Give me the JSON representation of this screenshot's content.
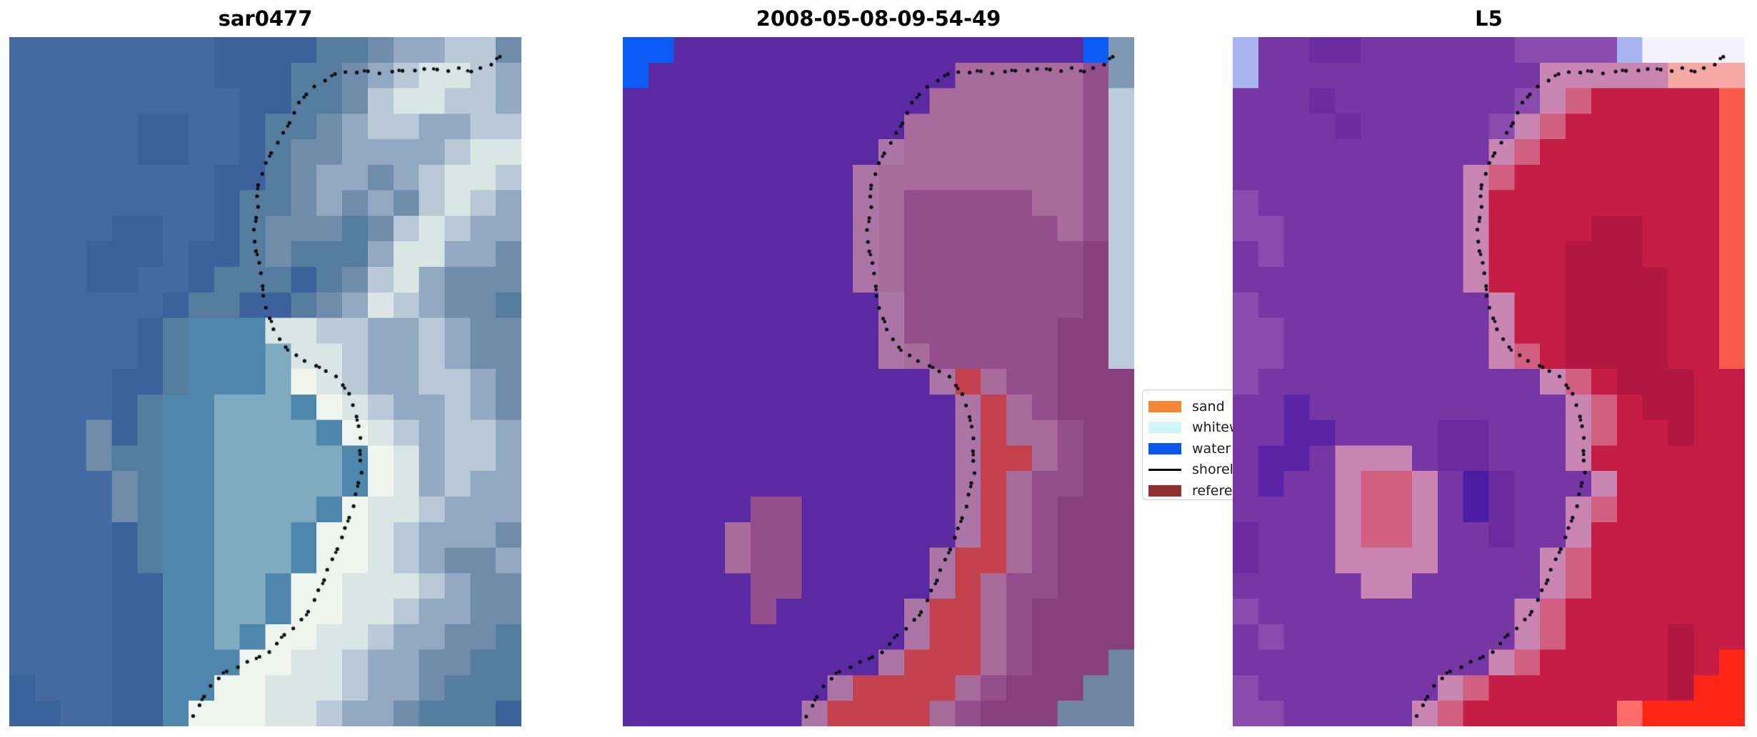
{
  "figure": {
    "background": "#ffffff"
  },
  "panels": [
    {
      "title": "sar0477",
      "grid": {
        "cols": 20,
        "rows": 27,
        "palette": {
          "a": "#456AA2",
          "b": "#3C619B",
          "c": "#567C9E",
          "d": "#6F8CAB",
          "e": "#93A9C2",
          "f": "#B9C9D8",
          "g": "#D9E6E4",
          "h": "#EFF4EF",
          "i": "#4F86AC",
          "j": "#7FABC0",
          "k": "#38639C"
        },
        "rows_data": [
          "aaaaaaaabbbbccdeeffd",
          "aaaaaaaabbbccdefggfe",
          "aaaaaaaaabbccdfggffe",
          "aaaaabbaabccdeffeeff",
          "aaaaabbaabcddeeeefgg",
          "aaaaaaaabbcdeedefggf",
          "aaaaaaaabccdededfgfe",
          "aaaabbaabcdddcdfgfee",
          "aaabbbabbcdccceggeed",
          "aaabbaabcccbcdfgeddd",
          "aaaaaabccbbcdegfeddc",
          "aaaaabciiiggffeefedd",
          "aaaaabciiijggfeefedd",
          "aaaabbciiijhgfeeffed",
          "aaaabciijjjihgfeefed",
          "aaadbciijjjjihgfeffe",
          "aaadcciijjjjjihgeffe",
          "aaaadciijjjjjihgefee",
          "aaaadciijjjjihggfeee",
          "aaaabciijjjihhgfeeed",
          "aaaabciijjjihhgfedde",
          "aaaabbiijjihhgggfedd",
          "aaaabbiijjihhggfeedd",
          "aaaabbiijihhggfeeddc",
          "aaaabbiiihhggfeeddcc",
          "kaaabbiihhgggfeedccc",
          "kkaabbihhhggfeedcccb"
        ]
      }
    },
    {
      "title": "2008-05-08-09-54-49",
      "grid": {
        "cols": 20,
        "rows": 27,
        "palette": {
          "u": "#0B5CF5",
          "w": "#5B2AA3",
          "s": "#7E97B2",
          "t": "#BCCBDA",
          "l": "#A76C9C",
          "m": "#934E8B",
          "d": "#873F80",
          "q": "#AB76A5",
          "r": "#C4424E",
          "y": "#6E86A3"
        },
        "rows_data": [
          "uuwwwwwwwwwwwwwwwwus",
          "uwwwwwwwwwwwwlllllms",
          "wwwwwwwwwwwwllllllmt",
          "wwwwwwwwwwwlllllllmt",
          "wwwwwwwwwwqlllllllmt",
          "wwwwwwwwwqllllllllmt",
          "wwwwwwwwwqlmmmmmllmt",
          "wwwwwwwwwqlmmmmmmlmt",
          "wwwwwwwwwqlmmmmmmmdt",
          "wwwwwwwwwqlmmmmmmmdt",
          "wwwwwwwwwwqmmmmmmmdt",
          "wwwwwwwwwwqmmmmmmddt",
          "wwwwwwwwwwqlmmmmmddt",
          "wwwwwwwwwwwwqrlmmddd",
          "wwwwwwwwwwwwwqrlmddd",
          "wwwwwwwwwwwwwqrllmdd",
          "wwwwwwwwwwwwwqrrlmdd",
          "wwwwwwwwwwwwwqrlmmdd",
          "wwwwwmmwwwwwwqrlmddd",
          "wwwwlmmwwwwwwqrlmddd",
          "wwwwlmmwwwwwqrrlmddd",
          "wwwwwmmwwwwwqrlmmddd",
          "wwwwwmwwwwwqrrlmdddd",
          "wwwwwwwwwwwqrrlmdddd",
          "wwwwwwwwwwqrrrlmdddy",
          "wwwwwwwwqrrrrlmdddyy",
          "wwwwwwwqrrrrlmdddyyy"
        ]
      }
    },
    {
      "title": "L5",
      "grid": {
        "cols": 20,
        "rows": 27,
        "palette": {
          "P": "#7637A4",
          "O": "#8A4BAE",
          "Q": "#6A2C9F",
          "V": "#5B24A6",
          "X": "#4C1CA4",
          "B": "#A9B5F1",
          "N": "#F4F2FA",
          "S": "#F4A9A5",
          "E": "#F95B4B",
          "p": "#C986B2",
          "K": "#D05F80",
          "C": "#C51D46",
          "D": "#B21841",
          "F": "#FF2617",
          "G": "#FF6E69"
        },
        "rows_data": [
          "BPPQQPPPPPPOOOOBNNNN",
          "BPPPPPPPPPPPpppppSSS",
          "PPPQPPPPPPPOpKCCCCCE",
          "PPPPQPPPPPOpKCCCCCCE",
          "PPPPPPPPPPpKCCCCCCCE",
          "PPPPPPPPPpKCCCCCCCCE",
          "OPPPPPPPPpCCCCCCCCCE",
          "OOPPPPPPPpCCCCDDCCCE",
          "POPPPPPPPpCCCDDDCCCE",
          "PPPPPPPPPpCCCDDDDCCE",
          "OPPPPPPPPPpCCDDDDCCE",
          "OOPPPPPPPPpCCDDDDCCE",
          "OOPPPPPPPPpKCDDDDCCE",
          "OPPPPPPPPPPPpKCDDDCC",
          "PPVPPPPPPPPPPpKCDDCC",
          "PPVVPPPPQQPPPpKCCDCC",
          "PVVPpppPQQPPPpCCCCCC",
          "PVPPpKKpPXQPPPpCCCCC",
          "PPPPpKKpPXQPPpKCCCCC",
          "QPPPpKKpPPQPPpCCCCCC",
          "QPPPppppPPPPpKCCCCCC",
          "PPPPPppPPPPPpKCCCCCC",
          "OPPPPPPPPPPpKCCCCCCC",
          "POPPPPPPPPPpKCCCCDCC",
          "PPPPPPPPPPpKCCCCCDCF",
          "OPPPPPPPpKCCCCCCCDFF",
          "OOPPPPPpKCCCCCCGFFFF"
        ]
      }
    }
  ],
  "shoreline": {
    "color": "#0E0E16",
    "dot_radius": 2.6,
    "dot_spacing": 16,
    "points": [
      [
        0.96,
        0.03
      ],
      [
        0.935,
        0.042
      ],
      [
        0.91,
        0.05
      ],
      [
        0.88,
        0.046
      ],
      [
        0.85,
        0.05
      ],
      [
        0.82,
        0.046
      ],
      [
        0.79,
        0.05
      ],
      [
        0.76,
        0.048
      ],
      [
        0.73,
        0.052
      ],
      [
        0.7,
        0.05
      ],
      [
        0.67,
        0.05
      ],
      [
        0.64,
        0.053
      ],
      [
        0.615,
        0.062
      ],
      [
        0.59,
        0.075
      ],
      [
        0.568,
        0.095
      ],
      [
        0.55,
        0.118
      ],
      [
        0.532,
        0.142
      ],
      [
        0.513,
        0.165
      ],
      [
        0.498,
        0.186
      ],
      [
        0.488,
        0.208
      ],
      [
        0.485,
        0.232
      ],
      [
        0.483,
        0.256
      ],
      [
        0.479,
        0.28
      ],
      [
        0.477,
        0.303
      ],
      [
        0.489,
        0.326
      ],
      [
        0.494,
        0.352
      ],
      [
        0.497,
        0.38
      ],
      [
        0.505,
        0.406
      ],
      [
        0.522,
        0.43
      ],
      [
        0.542,
        0.452
      ],
      [
        0.565,
        0.464
      ],
      [
        0.595,
        0.476
      ],
      [
        0.625,
        0.487
      ],
      [
        0.65,
        0.5
      ],
      [
        0.668,
        0.522
      ],
      [
        0.678,
        0.548
      ],
      [
        0.684,
        0.575
      ],
      [
        0.687,
        0.603
      ],
      [
        0.687,
        0.63
      ],
      [
        0.68,
        0.657
      ],
      [
        0.67,
        0.684
      ],
      [
        0.658,
        0.71
      ],
      [
        0.645,
        0.736
      ],
      [
        0.63,
        0.76
      ],
      [
        0.614,
        0.788
      ],
      [
        0.598,
        0.812
      ],
      [
        0.58,
        0.838
      ],
      [
        0.552,
        0.86
      ],
      [
        0.525,
        0.878
      ],
      [
        0.505,
        0.892
      ],
      [
        0.476,
        0.904
      ],
      [
        0.449,
        0.912
      ],
      [
        0.423,
        0.92
      ],
      [
        0.398,
        0.936
      ],
      [
        0.377,
        0.96
      ],
      [
        0.362,
        0.982
      ],
      [
        0.352,
        1.0
      ]
    ]
  },
  "legend": {
    "items": [
      {
        "label": "sand",
        "color": "#F5873B",
        "type": "patch"
      },
      {
        "label": "whitewater",
        "color": "#D2F6F8",
        "type": "patch"
      },
      {
        "label": "water",
        "color": "#0B57EE",
        "type": "patch"
      },
      {
        "label": "shoreline",
        "color": "#000000",
        "type": "line"
      },
      {
        "label": "reference",
        "color": "#8F2F2F",
        "type": "patch"
      }
    ]
  },
  "chart_data": {
    "type": "heatmap",
    "subplots": [
      "sar0477",
      "2008-05-08-09-54-49",
      "L5"
    ],
    "legend_entries": [
      "sand",
      "whitewater",
      "water",
      "shoreline",
      "reference"
    ],
    "legend_position": "right of middle subplot",
    "description_of_overlay": "dotted black shoreline traced identically on all three image panels",
    "grids": "see panels[].grid for the 20x27 raster color data of each image panel"
  }
}
